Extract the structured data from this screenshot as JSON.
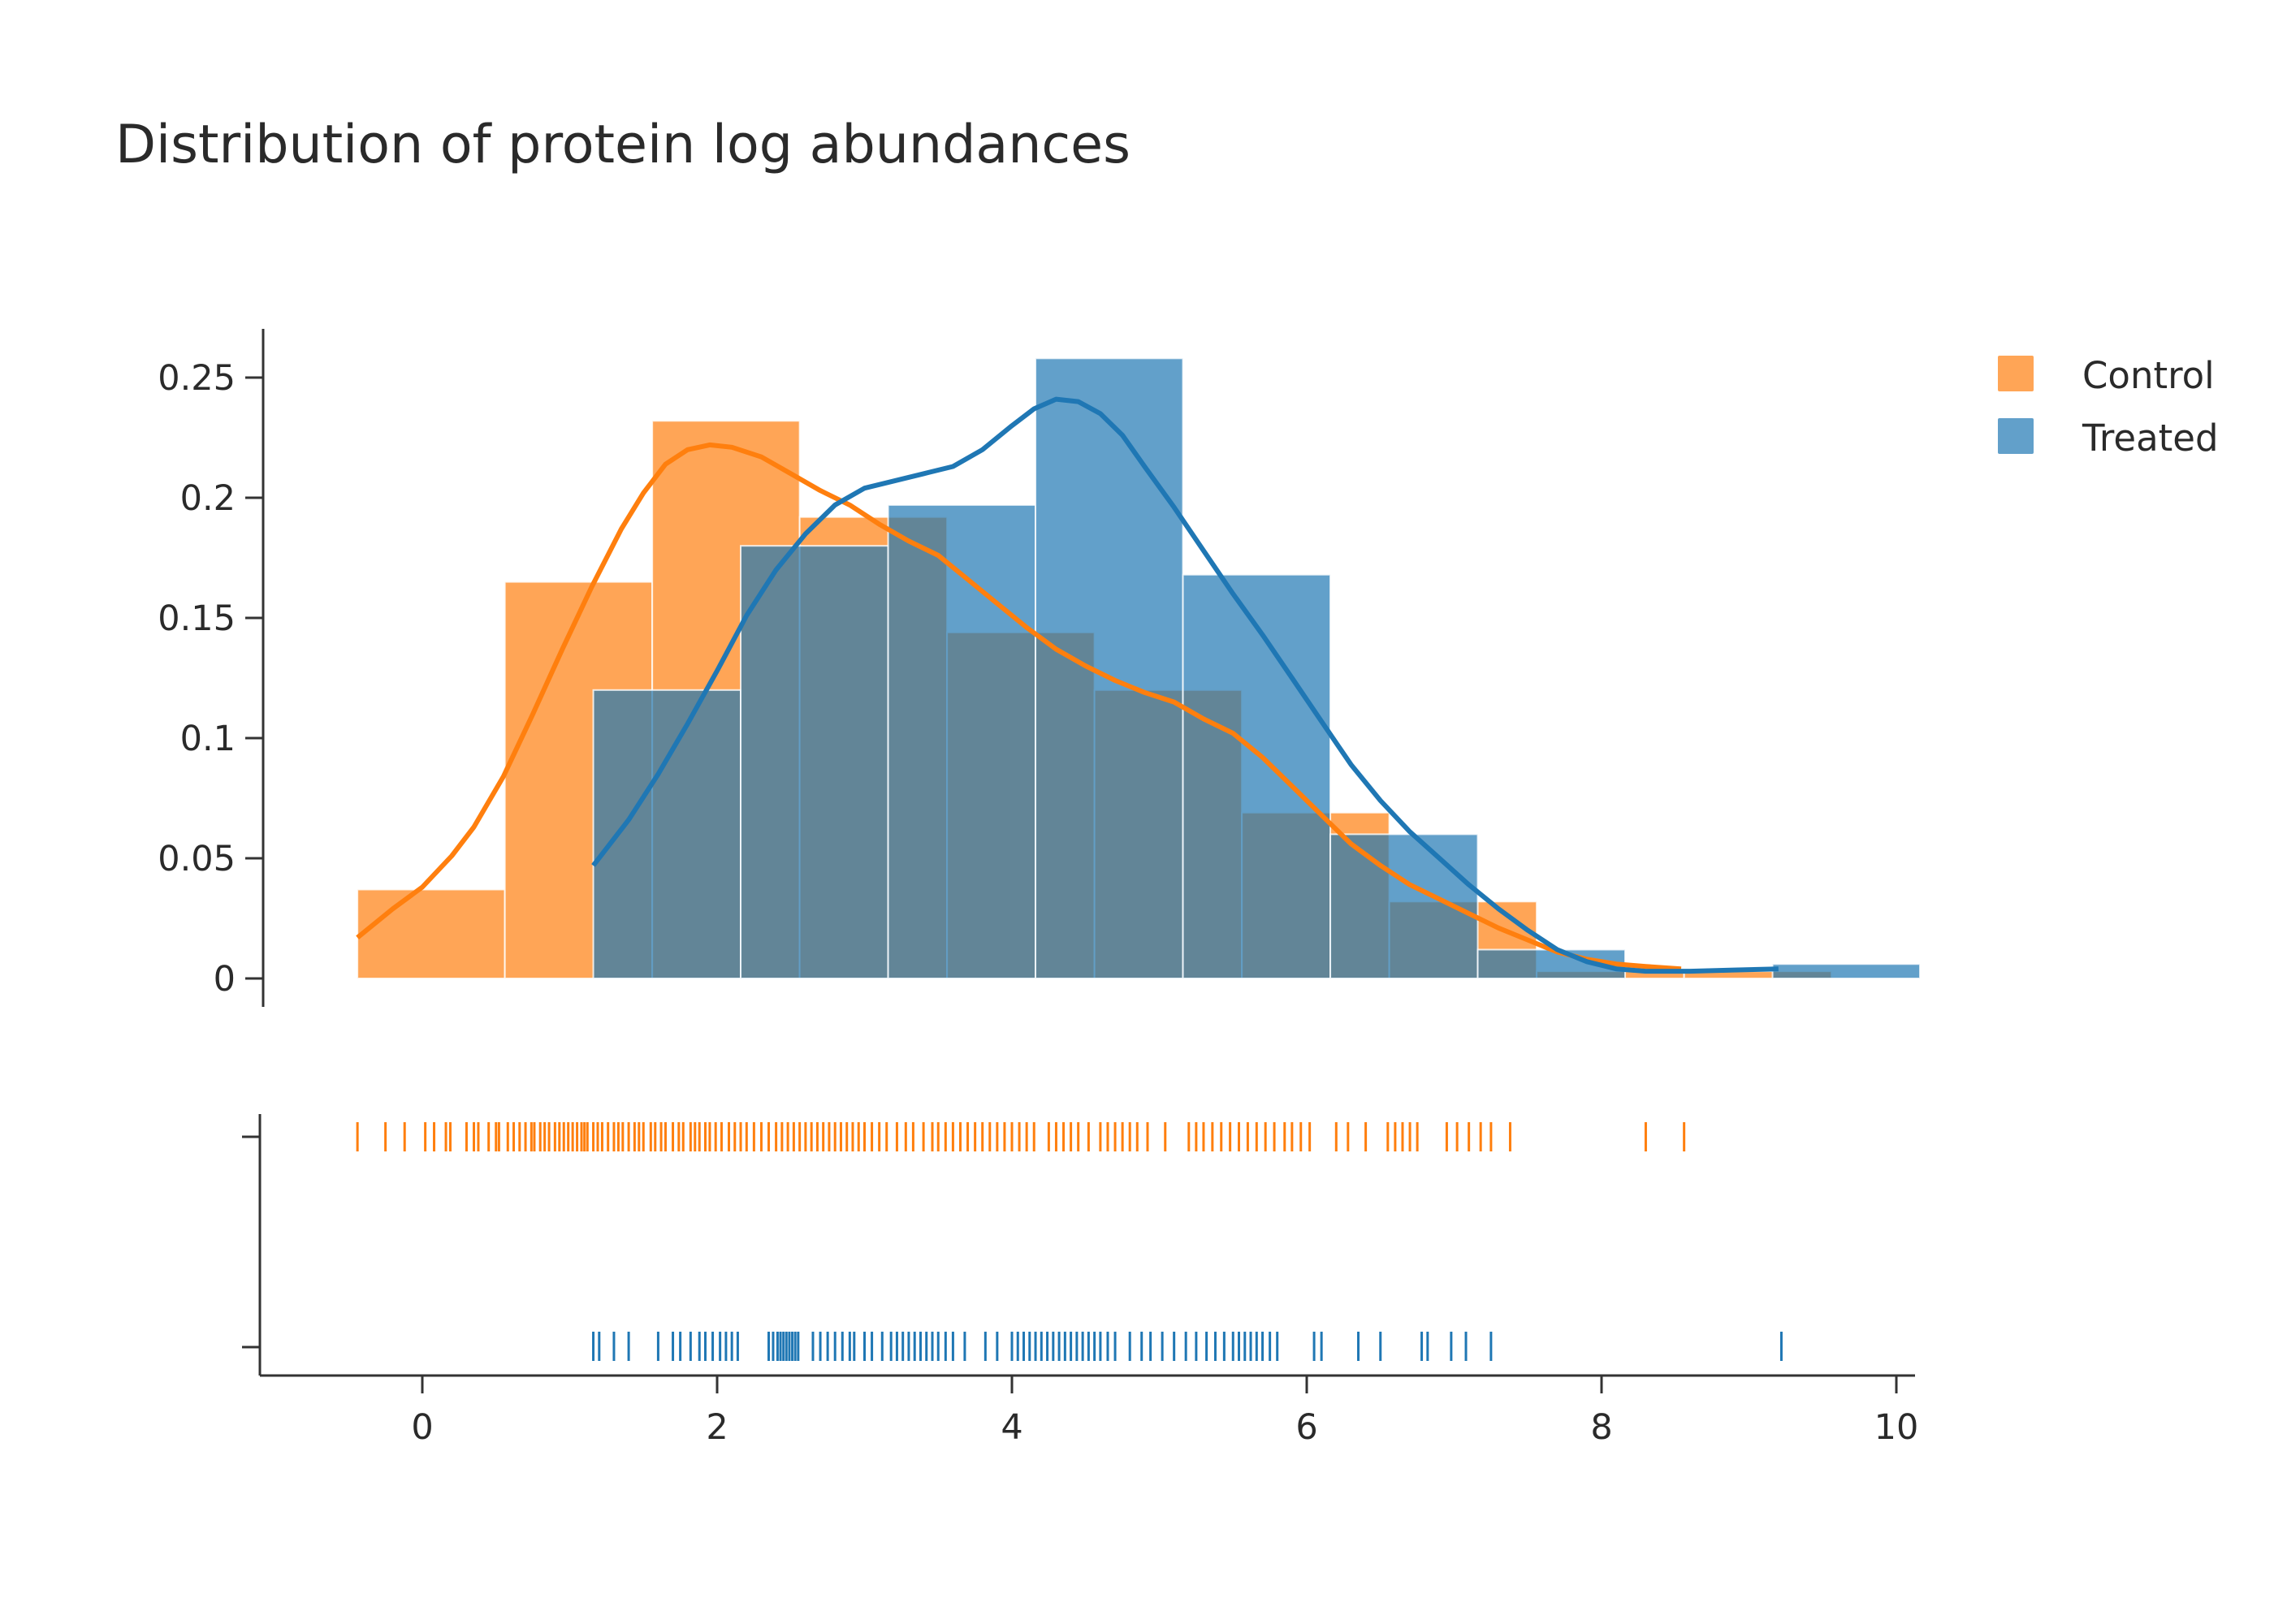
{
  "chart_data": {
    "type": "histogram",
    "title": "Distribution of protein log abundances",
    "xlabel": "",
    "ylabel": "",
    "xlim": [
      -1.1,
      10.1
    ],
    "ylim": [
      0,
      0.27
    ],
    "x_ticks": [
      0,
      2,
      4,
      6,
      8,
      10
    ],
    "y_ticks": [
      {
        "value": 0,
        "label": "0"
      },
      {
        "value": 0.05,
        "label": "0.05"
      },
      {
        "value": 0.1,
        "label": "0.1"
      },
      {
        "value": 0.15,
        "label": "0.15"
      },
      {
        "value": 0.2,
        "label": "0.2"
      },
      {
        "value": 0.25,
        "label": "0.25"
      }
    ],
    "grid": false,
    "legend_position": "top-right",
    "series": [
      {
        "name": "Control",
        "color": "#ff7f0e",
        "bins": [
          {
            "x0": -0.44,
            "x1": 0.56,
            "density": 0.037
          },
          {
            "x0": 0.56,
            "x1": 1.56,
            "density": 0.165
          },
          {
            "x0": 1.56,
            "x1": 2.56,
            "density": 0.232
          },
          {
            "x0": 2.56,
            "x1": 3.56,
            "density": 0.192
          },
          {
            "x0": 3.56,
            "x1": 4.56,
            "density": 0.144
          },
          {
            "x0": 4.56,
            "x1": 5.56,
            "density": 0.12
          },
          {
            "x0": 5.56,
            "x1": 6.56,
            "density": 0.069
          },
          {
            "x0": 6.56,
            "x1": 7.56,
            "density": 0.032
          },
          {
            "x0": 7.56,
            "x1": 8.56,
            "density": 0.003
          },
          {
            "x0": 8.56,
            "x1": 9.56,
            "density": 0.003
          }
        ],
        "kde": [
          [
            -0.44,
            0.017
          ],
          [
            -0.2,
            0.029
          ],
          [
            0.0,
            0.038
          ],
          [
            0.2,
            0.051
          ],
          [
            0.35,
            0.063
          ],
          [
            0.55,
            0.084
          ],
          [
            0.75,
            0.11
          ],
          [
            0.95,
            0.137
          ],
          [
            1.15,
            0.163
          ],
          [
            1.35,
            0.187
          ],
          [
            1.5,
            0.202
          ],
          [
            1.65,
            0.214
          ],
          [
            1.8,
            0.22
          ],
          [
            1.95,
            0.222
          ],
          [
            2.1,
            0.221
          ],
          [
            2.3,
            0.217
          ],
          [
            2.5,
            0.21
          ],
          [
            2.7,
            0.203
          ],
          [
            2.9,
            0.197
          ],
          [
            3.1,
            0.189
          ],
          [
            3.3,
            0.182
          ],
          [
            3.5,
            0.176
          ],
          [
            3.7,
            0.166
          ],
          [
            3.9,
            0.156
          ],
          [
            4.1,
            0.146
          ],
          [
            4.3,
            0.137
          ],
          [
            4.5,
            0.13
          ],
          [
            4.7,
            0.124
          ],
          [
            4.9,
            0.119
          ],
          [
            5.1,
            0.115
          ],
          [
            5.3,
            0.108
          ],
          [
            5.5,
            0.102
          ],
          [
            5.7,
            0.092
          ],
          [
            5.9,
            0.08
          ],
          [
            6.1,
            0.068
          ],
          [
            6.3,
            0.056
          ],
          [
            6.5,
            0.047
          ],
          [
            6.7,
            0.039
          ],
          [
            6.9,
            0.033
          ],
          [
            7.1,
            0.027
          ],
          [
            7.3,
            0.021
          ],
          [
            7.5,
            0.016
          ],
          [
            7.7,
            0.011
          ],
          [
            7.9,
            0.008
          ],
          [
            8.1,
            0.006
          ],
          [
            8.3,
            0.005
          ],
          [
            8.54,
            0.004
          ]
        ],
        "rug": [
          -0.44,
          -0.25,
          -0.12,
          0.02,
          0.08,
          0.16,
          0.19,
          0.3,
          0.35,
          0.38,
          0.45,
          0.5,
          0.52,
          0.58,
          0.62,
          0.66,
          0.7,
          0.74,
          0.76,
          0.8,
          0.83,
          0.86,
          0.9,
          0.93,
          0.96,
          0.99,
          1.02,
          1.05,
          1.08,
          1.1,
          1.12,
          1.16,
          1.19,
          1.22,
          1.26,
          1.3,
          1.33,
          1.36,
          1.4,
          1.44,
          1.47,
          1.5,
          1.55,
          1.58,
          1.62,
          1.65,
          1.7,
          1.74,
          1.77,
          1.82,
          1.85,
          1.88,
          1.92,
          1.95,
          1.99,
          2.03,
          2.08,
          2.12,
          2.16,
          2.2,
          2.25,
          2.3,
          2.35,
          2.4,
          2.44,
          2.48,
          2.52,
          2.56,
          2.6,
          2.64,
          2.68,
          2.72,
          2.76,
          2.8,
          2.84,
          2.88,
          2.92,
          2.96,
          3.0,
          3.05,
          3.1,
          3.15,
          3.22,
          3.28,
          3.33,
          3.4,
          3.46,
          3.5,
          3.55,
          3.6,
          3.65,
          3.7,
          3.75,
          3.8,
          3.85,
          3.9,
          3.95,
          4.0,
          4.05,
          4.1,
          4.15,
          4.25,
          4.3,
          4.35,
          4.4,
          4.45,
          4.52,
          4.6,
          4.65,
          4.7,
          4.75,
          4.8,
          4.85,
          4.92,
          5.04,
          5.2,
          5.25,
          5.3,
          5.36,
          5.42,
          5.48,
          5.54,
          5.6,
          5.66,
          5.72,
          5.78,
          5.85,
          5.9,
          5.96,
          6.02,
          6.2,
          6.28,
          6.4,
          6.55,
          6.6,
          6.65,
          6.7,
          6.75,
          6.95,
          7.02,
          7.1,
          7.18,
          7.25,
          7.38,
          8.3,
          8.56
        ]
      },
      {
        "name": "Treated",
        "color": "#1f77b4",
        "bins": [
          {
            "x0": 1.16,
            "x1": 2.16,
            "density": 0.12
          },
          {
            "x0": 2.16,
            "x1": 3.16,
            "density": 0.18
          },
          {
            "x0": 3.16,
            "x1": 4.16,
            "density": 0.197
          },
          {
            "x0": 4.16,
            "x1": 5.16,
            "density": 0.258
          },
          {
            "x0": 5.16,
            "x1": 6.16,
            "density": 0.168
          },
          {
            "x0": 6.16,
            "x1": 7.16,
            "density": 0.06
          },
          {
            "x0": 7.16,
            "x1": 8.16,
            "density": 0.012
          },
          {
            "x0": 8.16,
            "x1": 9.16,
            "density": 0.0
          },
          {
            "x0": 9.16,
            "x1": 10.16,
            "density": 0.006
          }
        ],
        "kde": [
          [
            1.16,
            0.047
          ],
          [
            1.4,
            0.066
          ],
          [
            1.6,
            0.085
          ],
          [
            1.8,
            0.106
          ],
          [
            2.0,
            0.128
          ],
          [
            2.2,
            0.151
          ],
          [
            2.4,
            0.17
          ],
          [
            2.6,
            0.185
          ],
          [
            2.8,
            0.197
          ],
          [
            3.0,
            0.204
          ],
          [
            3.2,
            0.207
          ],
          [
            3.4,
            0.21
          ],
          [
            3.6,
            0.213
          ],
          [
            3.8,
            0.22
          ],
          [
            4.0,
            0.23
          ],
          [
            4.15,
            0.237
          ],
          [
            4.3,
            0.241
          ],
          [
            4.45,
            0.24
          ],
          [
            4.6,
            0.235
          ],
          [
            4.75,
            0.226
          ],
          [
            4.9,
            0.213
          ],
          [
            5.1,
            0.196
          ],
          [
            5.3,
            0.178
          ],
          [
            5.5,
            0.16
          ],
          [
            5.7,
            0.143
          ],
          [
            5.9,
            0.125
          ],
          [
            6.1,
            0.107
          ],
          [
            6.3,
            0.089
          ],
          [
            6.5,
            0.074
          ],
          [
            6.7,
            0.061
          ],
          [
            6.9,
            0.05
          ],
          [
            7.1,
            0.039
          ],
          [
            7.3,
            0.029
          ],
          [
            7.5,
            0.02
          ],
          [
            7.7,
            0.012
          ],
          [
            7.9,
            0.007
          ],
          [
            8.1,
            0.004
          ],
          [
            8.3,
            0.003
          ],
          [
            8.6,
            0.003
          ],
          [
            8.9,
            0.0035
          ],
          [
            9.2,
            0.004
          ]
        ],
        "rug": [
          1.16,
          1.2,
          1.3,
          1.4,
          1.6,
          1.7,
          1.75,
          1.82,
          1.88,
          1.92,
          1.97,
          2.02,
          2.06,
          2.1,
          2.14,
          2.35,
          2.38,
          2.41,
          2.43,
          2.45,
          2.47,
          2.49,
          2.51,
          2.53,
          2.55,
          2.65,
          2.7,
          2.75,
          2.8,
          2.85,
          2.9,
          2.93,
          3.0,
          3.05,
          3.12,
          3.18,
          3.22,
          3.26,
          3.3,
          3.34,
          3.38,
          3.42,
          3.46,
          3.5,
          3.55,
          3.6,
          3.68,
          3.82,
          3.9,
          4.0,
          4.04,
          4.08,
          4.12,
          4.16,
          4.2,
          4.24,
          4.28,
          4.32,
          4.36,
          4.4,
          4.44,
          4.48,
          4.52,
          4.56,
          4.6,
          4.65,
          4.7,
          4.8,
          4.88,
          4.94,
          5.02,
          5.1,
          5.18,
          5.25,
          5.32,
          5.38,
          5.44,
          5.5,
          5.54,
          5.58,
          5.62,
          5.66,
          5.7,
          5.75,
          5.8,
          6.05,
          6.1,
          6.35,
          6.5,
          6.78,
          6.82,
          6.98,
          7.08,
          7.25,
          9.22
        ]
      }
    ]
  }
}
